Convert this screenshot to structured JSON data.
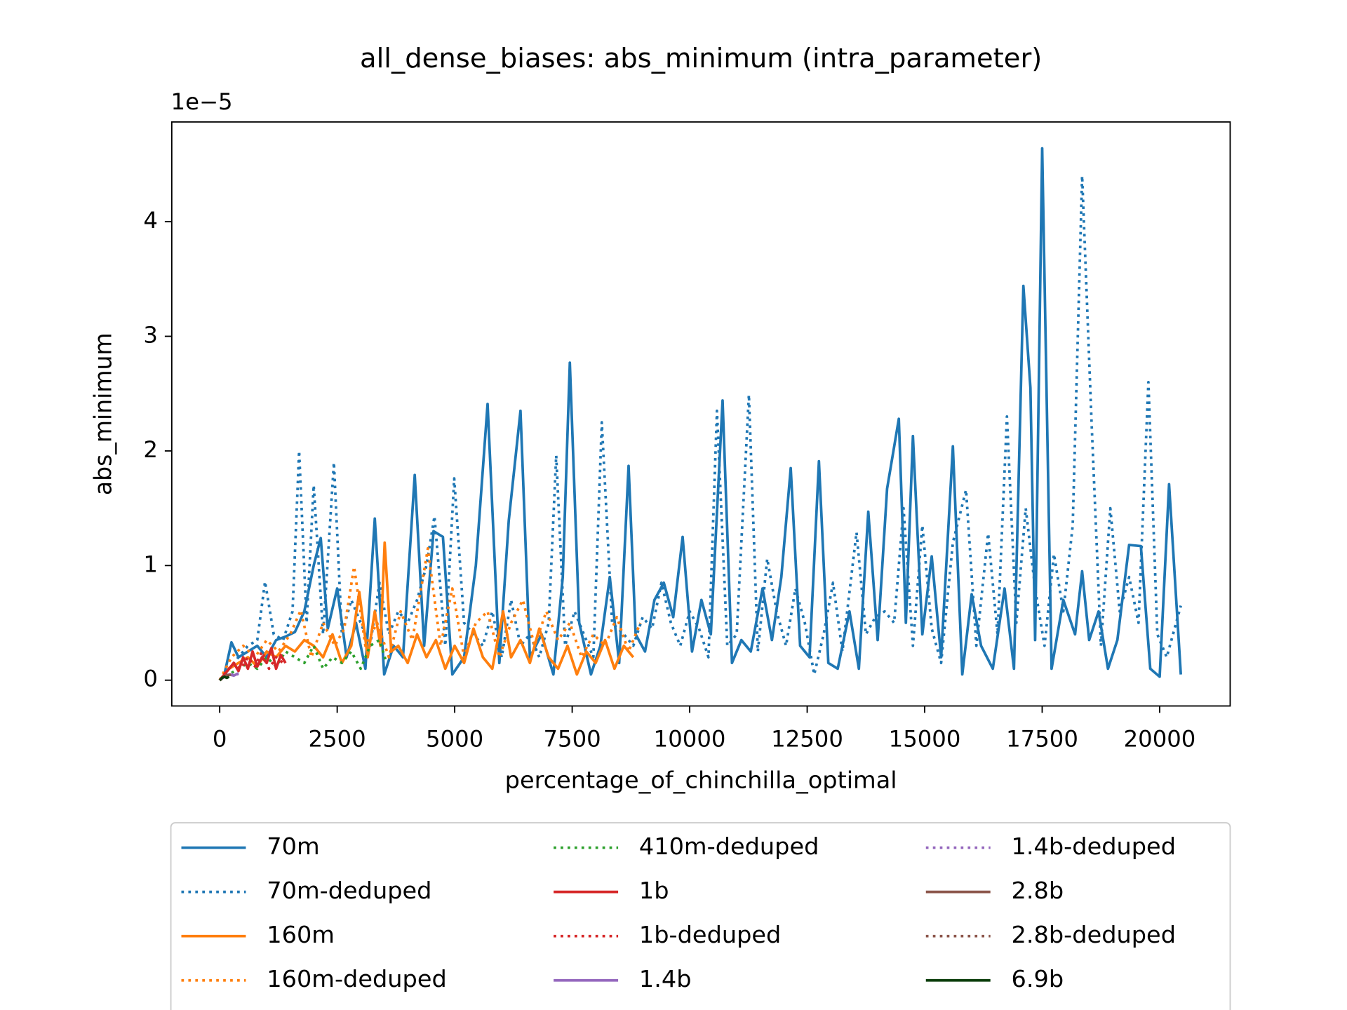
{
  "chart_data": {
    "type": "line",
    "title": "all_dense_biases: abs_minimum (intra_parameter)",
    "x_label": "percentage_of_chinchilla_optimal",
    "y_label": "abs_minimum",
    "y_offset_label": "1e−5",
    "xlim": [
      -1020,
      21500
    ],
    "ylim": [
      -0.225,
      4.87
    ],
    "xticks": [
      0,
      2500,
      5000,
      7500,
      10000,
      12500,
      15000,
      17500,
      20000
    ],
    "yticks": [
      0,
      1,
      2,
      3,
      4
    ],
    "legend": "below",
    "series": [
      {
        "name": "70m",
        "color": "#1f77b4",
        "style": "solid",
        "x": [
          0,
          100,
          250,
          400,
          600,
          800,
          1000,
          1200,
          1400,
          1600,
          1800,
          2000,
          2150,
          2300,
          2500,
          2700,
          2900,
          3100,
          3300,
          3500,
          3700,
          3900,
          4150,
          4350,
          4550,
          4750,
          4950,
          5200,
          5450,
          5700,
          5950,
          6150,
          6400,
          6600,
          6850,
          7100,
          7300,
          7450,
          7650,
          7900,
          8100,
          8300,
          8500,
          8700,
          8850,
          9050,
          9250,
          9450,
          9650,
          9850,
          10050,
          10250,
          10450,
          10700,
          10900,
          11100,
          11300,
          11550,
          11750,
          11950,
          12150,
          12350,
          12550,
          12750,
          12950,
          13150,
          13400,
          13600,
          13800,
          14000,
          14200,
          14450,
          14600,
          14750,
          14950,
          15150,
          15350,
          15600,
          15800,
          16000,
          16200,
          16450,
          16700,
          16900,
          17100,
          17250,
          17350,
          17500,
          17700,
          17950,
          18200,
          18350,
          18500,
          18700,
          18900,
          19100,
          19350,
          19600,
          19800,
          20000,
          20200,
          20450
        ],
        "values": [
          0,
          0.05,
          0.33,
          0.2,
          0.25,
          0.3,
          0.2,
          0.35,
          0.38,
          0.42,
          0.6,
          1.0,
          1.24,
          0.45,
          0.8,
          0.2,
          0.5,
          0.1,
          1.41,
          0.05,
          0.3,
          0.2,
          1.79,
          0.3,
          1.3,
          1.25,
          0.05,
          0.2,
          1.0,
          2.41,
          0.15,
          1.39,
          2.35,
          0.2,
          0.4,
          0.05,
          0.9,
          2.77,
          0.5,
          0.05,
          0.3,
          0.9,
          0.15,
          1.87,
          0.4,
          0.25,
          0.7,
          0.85,
          0.55,
          1.25,
          0.25,
          0.7,
          0.4,
          2.44,
          0.15,
          0.35,
          0.25,
          0.8,
          0.35,
          0.9,
          1.85,
          0.3,
          0.2,
          1.91,
          0.15,
          0.1,
          0.6,
          0.1,
          1.47,
          0.35,
          1.67,
          2.28,
          0.5,
          2.13,
          0.4,
          1.08,
          0.2,
          2.04,
          0.05,
          0.75,
          0.3,
          0.1,
          0.8,
          0.1,
          3.44,
          2.55,
          0.35,
          4.64,
          0.1,
          0.7,
          0.4,
          0.95,
          0.35,
          0.6,
          0.1,
          0.35,
          1.18,
          1.17,
          0.1,
          0.03,
          1.71,
          0.05
        ]
      },
      {
        "name": "70m-deduped",
        "color": "#1f77b4",
        "style": "dotted",
        "x": [
          0,
          200,
          400,
          600,
          800,
          965,
          1150,
          1350,
          1550,
          1690,
          1850,
          2000,
          2200,
          2430,
          2600,
          2800,
          3000,
          3200,
          3400,
          3600,
          3800,
          4000,
          4200,
          4400,
          4570,
          4800,
          4990,
          5200,
          5400,
          5600,
          5800,
          6000,
          6200,
          6400,
          6600,
          6800,
          7000,
          7160,
          7350,
          7550,
          7750,
          7950,
          8130,
          8350,
          8600,
          8800,
          9000,
          9200,
          9400,
          9600,
          9800,
          10000,
          10200,
          10400,
          10580,
          10800,
          11000,
          11260,
          11450,
          11650,
          11850,
          12050,
          12250,
          12450,
          12650,
          12850,
          13050,
          13250,
          13550,
          13750,
          13950,
          14150,
          14350,
          14550,
          14750,
          14950,
          15150,
          15350,
          15600,
          15880,
          16100,
          16350,
          16550,
          16750,
          16950,
          17150,
          17350,
          17550,
          17750,
          17950,
          18150,
          18350,
          18550,
          18750,
          18950,
          19150,
          19350,
          19550,
          19760,
          19950,
          20150,
          20450
        ],
        "values": [
          0,
          0.1,
          0.2,
          0.3,
          0.35,
          0.86,
          0.4,
          0.35,
          0.6,
          2.0,
          0.5,
          1.7,
          0.4,
          1.9,
          0.4,
          0.7,
          0.5,
          0.3,
          0.85,
          0.4,
          0.6,
          0.5,
          0.7,
          1.0,
          1.43,
          0.3,
          1.76,
          0.5,
          0.4,
          0.3,
          0.6,
          0.2,
          0.7,
          0.3,
          0.4,
          0.2,
          0.5,
          1.96,
          0.3,
          0.6,
          0.4,
          0.2,
          2.25,
          0.5,
          0.4,
          0.3,
          0.55,
          0.45,
          0.85,
          0.5,
          0.3,
          0.6,
          0.45,
          0.2,
          2.35,
          0.3,
          0.4,
          2.49,
          0.25,
          1.06,
          0.6,
          0.3,
          0.8,
          0.5,
          0.05,
          0.4,
          0.85,
          0.25,
          1.29,
          0.4,
          0.55,
          0.6,
          0.5,
          1.5,
          0.3,
          1.35,
          0.45,
          0.15,
          1.2,
          1.66,
          0.3,
          1.28,
          0.4,
          2.3,
          0.5,
          1.5,
          0.8,
          0.3,
          1.1,
          0.6,
          1.35,
          4.4,
          2.26,
          0.3,
          1.5,
          0.6,
          0.9,
          0.5,
          2.6,
          0.4,
          0.2,
          0.65
        ]
      },
      {
        "name": "160m",
        "color": "#ff7f0e",
        "style": "solid",
        "x": [
          0,
          200,
          400,
          600,
          800,
          1000,
          1200,
          1400,
          1600,
          1800,
          2000,
          2200,
          2400,
          2600,
          2800,
          2970,
          3150,
          3300,
          3420,
          3510,
          3650,
          3800,
          4000,
          4200,
          4400,
          4600,
          4800,
          5000,
          5200,
          5400,
          5600,
          5800,
          6030,
          6200,
          6400,
          6600,
          6800,
          7000,
          7200,
          7400,
          7600,
          7800,
          8000,
          8200,
          8400,
          8600,
          8800
        ],
        "values": [
          0,
          0.1,
          0.15,
          0.2,
          0.12,
          0.25,
          0.2,
          0.3,
          0.25,
          0.35,
          0.3,
          0.2,
          0.4,
          0.15,
          0.3,
          0.77,
          0.2,
          0.6,
          0.3,
          1.2,
          0.25,
          0.3,
          0.15,
          0.4,
          0.2,
          0.35,
          0.1,
          0.3,
          0.15,
          0.45,
          0.2,
          0.1,
          0.6,
          0.2,
          0.35,
          0.15,
          0.45,
          0.2,
          0.1,
          0.3,
          0.05,
          0.25,
          0.15,
          0.35,
          0.1,
          0.3,
          0.2
        ]
      },
      {
        "name": "160m-deduped",
        "color": "#ff7f0e",
        "style": "dotted",
        "x": [
          0,
          250,
          500,
          750,
          1000,
          1250,
          1500,
          1725,
          1950,
          2200,
          2450,
          2650,
          2860,
          3100,
          3350,
          3600,
          3850,
          4100,
          4430,
          4700,
          4950,
          5200,
          5450,
          5700,
          5950,
          6200,
          6450,
          6700,
          6950,
          7200,
          7450,
          7700,
          7950,
          8200,
          8450,
          8700,
          8950
        ],
        "values": [
          0,
          0.2,
          0.3,
          0.2,
          0.35,
          0.25,
          0.4,
          0.61,
          0.2,
          0.5,
          0.3,
          0.45,
          0.99,
          0.3,
          0.5,
          0.2,
          0.6,
          0.35,
          1.15,
          0.3,
          0.8,
          0.2,
          0.5,
          0.6,
          0.2,
          0.5,
          0.7,
          0.3,
          0.6,
          0.35,
          0.5,
          0.2,
          0.4,
          0.3,
          0.55,
          0.25,
          0.5
        ]
      },
      {
        "name": "410m-deduped",
        "color": "#2ca02c",
        "style": "dotted",
        "x": [
          0,
          200,
          400,
          600,
          800,
          1000,
          1200,
          1400,
          1600,
          1800,
          2000,
          2200,
          2400,
          2600,
          2800,
          3000,
          3200,
          3400,
          3550
        ],
        "values": [
          0,
          0.05,
          0.1,
          0.15,
          0.1,
          0.2,
          0.12,
          0.25,
          0.2,
          0.15,
          0.3,
          0.1,
          0.2,
          0.15,
          0.25,
          0.1,
          0.3,
          0.35,
          0.15
        ]
      },
      {
        "name": "1b",
        "color": "#d62728",
        "style": "solid",
        "x": [
          0,
          100,
          200,
          300,
          400,
          500,
          600,
          700,
          800,
          900,
          1000,
          1100,
          1200,
          1300,
          1400
        ],
        "values": [
          0,
          0.05,
          0.1,
          0.15,
          0.08,
          0.2,
          0.1,
          0.25,
          0.12,
          0.2,
          0.15,
          0.28,
          0.1,
          0.22,
          0.15
        ]
      },
      {
        "name": "1b-deduped",
        "color": "#d62728",
        "style": "dotted",
        "x": [
          0,
          150,
          300,
          450,
          600,
          750,
          900,
          1050,
          1200,
          1350
        ],
        "values": [
          0,
          0.08,
          0.15,
          0.1,
          0.2,
          0.12,
          0.25,
          0.1,
          0.2,
          0.15
        ]
      },
      {
        "name": "1.4b",
        "color": "#9467bd",
        "style": "solid",
        "x": [
          0,
          100,
          200,
          300,
          400
        ],
        "values": [
          0,
          0.03,
          0.05,
          0.04,
          0.06
        ]
      },
      {
        "name": "1.4b-deduped",
        "color": "#9467bd",
        "style": "dotted",
        "x": [
          0,
          100,
          200,
          300,
          400
        ],
        "values": [
          0,
          0.04,
          0.03,
          0.06,
          0.05
        ]
      },
      {
        "name": "2.8b",
        "color": "#8c564b",
        "style": "solid",
        "x": [
          0,
          80,
          160,
          240
        ],
        "values": [
          0,
          0.03,
          0.04,
          0.05
        ]
      },
      {
        "name": "2.8b-deduped",
        "color": "#8c564b",
        "style": "dotted",
        "x": [
          0,
          80,
          160,
          240
        ],
        "values": [
          0,
          0.02,
          0.05,
          0.04
        ]
      },
      {
        "name": "6.9b",
        "color": "#0b3d0b",
        "style": "solid",
        "x": [
          0,
          50,
          100,
          150,
          200
        ],
        "values": [
          0,
          0.02,
          0.03,
          0.02,
          0.03
        ]
      }
    ]
  }
}
